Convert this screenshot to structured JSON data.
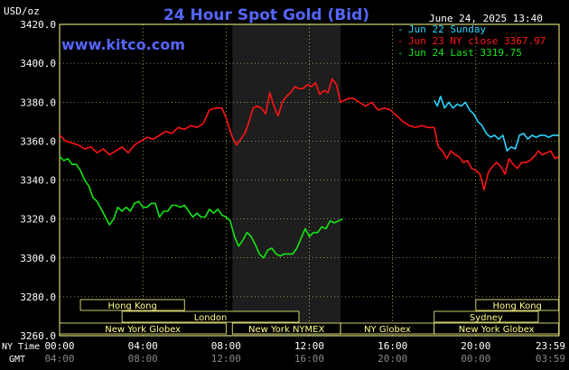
{
  "chart_data": {
    "type": "line",
    "title": "24 Hour Spot Gold (Bid)",
    "site": "www.kitco.com",
    "unit_label": "USD/oz",
    "timestamp": "June 24, 2025 13:40",
    "ylim": [
      3260,
      3420
    ],
    "yticks": [
      "3420.0",
      "3400.0",
      "3380.0",
      "3360.0",
      "3340.0",
      "3320.0",
      "3300.0",
      "3280.0",
      "3260.0"
    ],
    "x_ticks_ny": [
      "00:00",
      "04:00",
      "08:00",
      "12:00",
      "16:00",
      "20:00",
      "23:59"
    ],
    "x_ticks_gmt": [
      "04:00",
      "08:00",
      "12:00",
      "16:00",
      "20:00",
      "00:00",
      "03:59"
    ],
    "x_tick_hours": [
      0,
      4,
      8,
      12,
      16,
      20,
      23.983
    ],
    "x_axis_labels": {
      "ny": "NY Time",
      "gmt": "GMT"
    },
    "shaded_hours": [
      8.3,
      13.5
    ],
    "colors": {
      "title": "#5566ff",
      "grid": "#ffff88",
      "red": "#ff1414",
      "green": "#14e614",
      "blue": "#2ad4ff",
      "text": "#ffffff"
    },
    "legend": [
      {
        "text": "Jun 22 Sunday",
        "color": "#2ad4ff"
      },
      {
        "text": "Jun 23 NY close 3367.97",
        "color": "#ff1414"
      },
      {
        "text": "Jun 24 Last 3319.75",
        "color": "#14e614"
      }
    ],
    "series": [
      {
        "name": "Jun 22 Sunday",
        "color": "#2ad4ff",
        "x": [
          18.0,
          18.15,
          18.3,
          18.5,
          18.7,
          18.9,
          19.1,
          19.3,
          19.5,
          19.7,
          19.9,
          20.1,
          20.3,
          20.5,
          20.7,
          20.9,
          21.1,
          21.3,
          21.5,
          21.7,
          21.9,
          22.1,
          22.3,
          22.5,
          22.7,
          22.9,
          23.1,
          23.3,
          23.5,
          23.7,
          23.983
        ],
        "y": [
          3381,
          3378,
          3383,
          3377,
          3380,
          3377,
          3379,
          3378,
          3380,
          3376,
          3374,
          3370,
          3368,
          3364,
          3362,
          3363,
          3361,
          3363,
          3355,
          3357,
          3356,
          3363,
          3364,
          3361,
          3363,
          3362,
          3363,
          3363,
          3362,
          3363,
          3363
        ]
      },
      {
        "name": "Jun 23 NY close 3367.97",
        "color": "#ff1414",
        "x": [
          0.0,
          0.3,
          0.6,
          0.9,
          1.2,
          1.5,
          1.8,
          2.1,
          2.4,
          2.7,
          3.0,
          3.3,
          3.6,
          3.9,
          4.2,
          4.5,
          4.8,
          5.1,
          5.4,
          5.7,
          6.0,
          6.3,
          6.6,
          6.9,
          7.2,
          7.5,
          7.8,
          8.0,
          8.3,
          8.5,
          8.7,
          8.9,
          9.1,
          9.3,
          9.5,
          9.7,
          9.9,
          10.1,
          10.3,
          10.5,
          10.7,
          10.9,
          11.1,
          11.3,
          11.5,
          11.7,
          11.9,
          12.1,
          12.3,
          12.5,
          12.7,
          12.9,
          13.1,
          13.3,
          13.5,
          13.7,
          13.9,
          14.1,
          14.4,
          14.7,
          15.0,
          15.3,
          15.6,
          15.9,
          16.2,
          16.5,
          16.8,
          17.1,
          17.4,
          17.7,
          18.0,
          18.2,
          18.4,
          18.6,
          18.8,
          19.0,
          19.2,
          19.4,
          19.6,
          19.8,
          20.0,
          20.2,
          20.4,
          20.6,
          20.8,
          21.0,
          21.2,
          21.4,
          21.6,
          21.8,
          22.0,
          22.2,
          22.4,
          22.6,
          22.8,
          23.0,
          23.2,
          23.4,
          23.6,
          23.8,
          23.983
        ],
        "y": [
          3363,
          3360,
          3359,
          3358,
          3356,
          3357,
          3354,
          3356,
          3353,
          3355,
          3357,
          3354,
          3358,
          3360,
          3362,
          3361,
          3363,
          3365,
          3364,
          3367,
          3366,
          3368,
          3367,
          3369,
          3376,
          3377,
          3377,
          3372,
          3362,
          3358,
          3361,
          3364,
          3370,
          3377,
          3378,
          3377,
          3374,
          3385,
          3378,
          3373,
          3380,
          3383,
          3385,
          3388,
          3387,
          3387,
          3389,
          3388,
          3390,
          3384,
          3386,
          3385,
          3392,
          3389,
          3380,
          3381,
          3382,
          3382,
          3380,
          3378,
          3380,
          3376,
          3377,
          3376,
          3373,
          3370,
          3368,
          3367,
          3368,
          3367,
          3367,
          3357,
          3355,
          3351,
          3355,
          3353,
          3352,
          3349,
          3350,
          3346,
          3345,
          3343,
          3335,
          3344,
          3347,
          3349,
          3347,
          3343,
          3351,
          3348,
          3346,
          3349,
          3349,
          3350,
          3352,
          3355,
          3353,
          3354,
          3355,
          3351,
          3352
        ]
      },
      {
        "name": "Jun 24 Last 3319.75",
        "color": "#14e614",
        "x": [
          0.0,
          0.2,
          0.4,
          0.6,
          0.8,
          1.0,
          1.2,
          1.4,
          1.6,
          1.8,
          2.0,
          2.2,
          2.4,
          2.6,
          2.8,
          3.0,
          3.2,
          3.4,
          3.6,
          3.8,
          4.0,
          4.2,
          4.4,
          4.6,
          4.8,
          5.0,
          5.2,
          5.4,
          5.6,
          5.8,
          6.0,
          6.2,
          6.4,
          6.6,
          6.8,
          7.0,
          7.2,
          7.4,
          7.6,
          7.8,
          8.0,
          8.2,
          8.4,
          8.6,
          8.8,
          9.0,
          9.2,
          9.4,
          9.6,
          9.8,
          10.0,
          10.2,
          10.4,
          10.6,
          10.8,
          11.0,
          11.2,
          11.4,
          11.6,
          11.8,
          12.0,
          12.2,
          12.4,
          12.6,
          12.8,
          13.0,
          13.2,
          13.4,
          13.6
        ],
        "y": [
          3352,
          3350,
          3351,
          3348,
          3348,
          3345,
          3340,
          3337,
          3331,
          3329,
          3325,
          3321,
          3317,
          3320,
          3326,
          3324,
          3326,
          3324,
          3328,
          3329,
          3326,
          3326,
          3328,
          3328,
          3321,
          3324,
          3324,
          3327,
          3327,
          3326,
          3327,
          3324,
          3321,
          3323,
          3321,
          3321,
          3325,
          3323,
          3325,
          3322,
          3321,
          3319,
          3311,
          3306,
          3309,
          3313,
          3311,
          3307,
          3302,
          3300,
          3304,
          3305,
          3302,
          3301,
          3302,
          3302,
          3302,
          3305,
          3310,
          3315,
          3311,
          3313,
          3313,
          3316,
          3315,
          3319,
          3318,
          3319,
          3320
        ]
      }
    ],
    "sessions": [
      {
        "label": "Hong Kong",
        "start": 1.0,
        "end": 6.0,
        "row": 0
      },
      {
        "label": "London",
        "start": 3.0,
        "end": 11.5,
        "row": 1
      },
      {
        "label": "New York Globex",
        "start": 0.0,
        "end": 8.0,
        "row": 2
      },
      {
        "label": "New York NYMEX",
        "start": 8.3,
        "end": 13.5,
        "row": 2
      },
      {
        "label": "NY Globex",
        "start": 13.5,
        "end": 18.0,
        "row": 2
      },
      {
        "label": "Hong Kong",
        "start": 20.0,
        "end": 23.983,
        "row": 0
      },
      {
        "label": "Sydney",
        "start": 18.0,
        "end": 23.0,
        "row": 1
      },
      {
        "label": "New York Globex",
        "start": 18.0,
        "end": 23.983,
        "row": 2
      }
    ]
  }
}
